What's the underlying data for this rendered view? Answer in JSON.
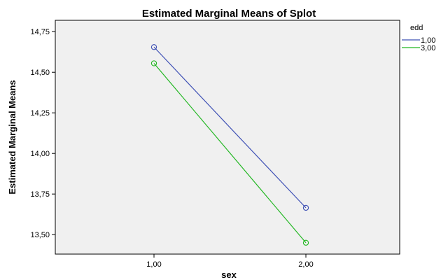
{
  "chart_data": {
    "type": "line",
    "title": "Estimated Marginal Means of Splot",
    "xlabel": "sex",
    "ylabel": "Estimated Marginal Means",
    "categories": [
      "1,00",
      "2,00"
    ],
    "y_ticks": [
      "13,50",
      "13,75",
      "14,00",
      "14,25",
      "14,50",
      "14,75"
    ],
    "ylim": [
      13.38,
      14.82
    ],
    "grid": false,
    "legend_title": "edd",
    "legend_position": "right",
    "plot_background": "#f0f0f0",
    "series": [
      {
        "name": "1,00",
        "color": "#3f51b5",
        "values": [
          14.655,
          13.665
        ]
      },
      {
        "name": "3,00",
        "color": "#22b722",
        "values": [
          14.555,
          13.45
        ]
      }
    ]
  }
}
